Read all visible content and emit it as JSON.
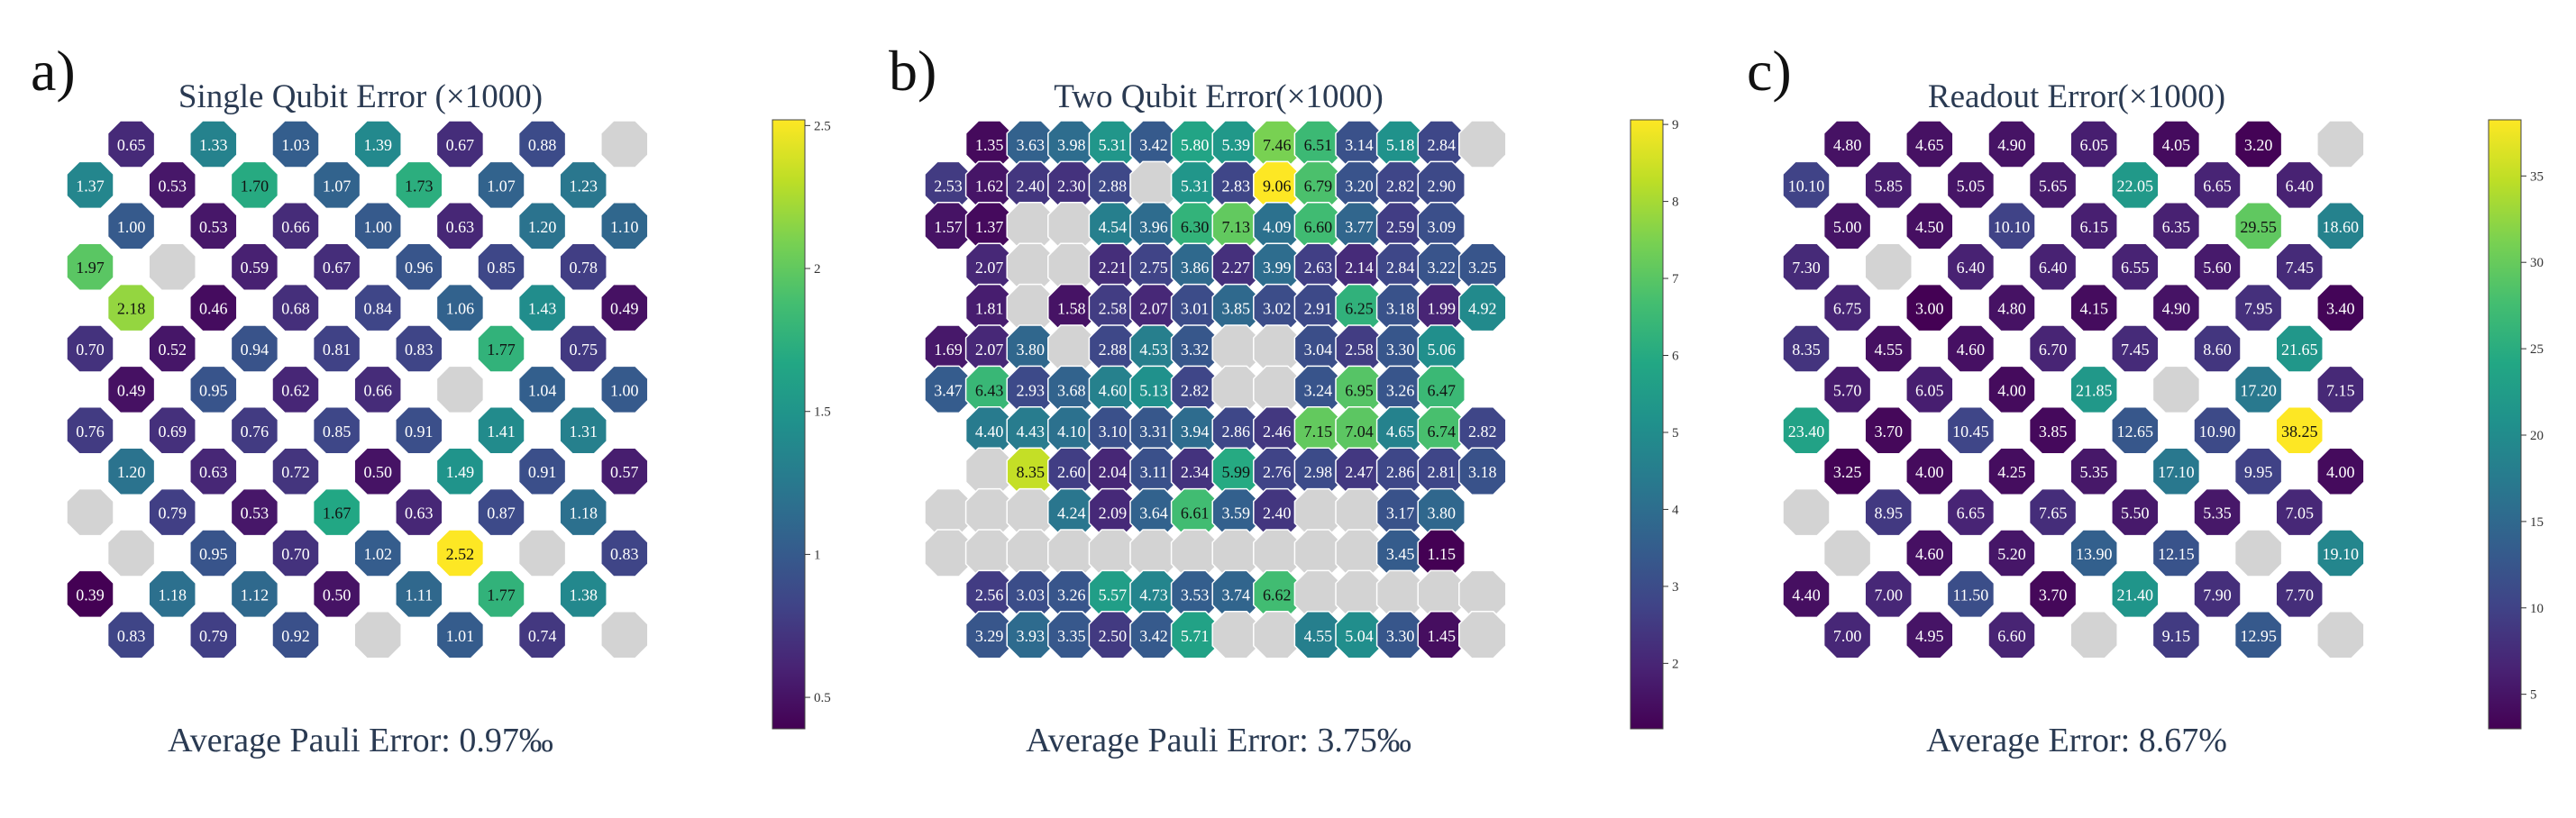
{
  "panels": [
    {
      "letter": "a)",
      "title": "Single Qubit Error (×1000)",
      "footer": "Average Pauli Error: 0.97‰"
    },
    {
      "letter": "b)",
      "title": "Two Qubit Error(×1000)",
      "footer": "Average Pauli Error: 3.75‰"
    },
    {
      "letter": "c)",
      "title": "Readout Error(×1000)",
      "footer": "Average Error: 8.67%"
    }
  ],
  "chart_data": [
    {
      "type": "heatmap",
      "title": "Single Qubit Error (×1000)",
      "colormap": "viridis",
      "vmin": 0.39,
      "vmax": 2.52,
      "colorbar_ticks": [
        "0.5",
        "1",
        "1.5",
        "2",
        "2.5"
      ],
      "colorbar_tick_values": [
        0.5,
        1,
        1.5,
        2,
        2.5
      ],
      "summary": "Average Pauli Error: 0.97‰",
      "rows": [
        [
          null,
          0.65,
          null,
          1.33,
          null,
          1.03,
          null,
          1.39,
          null,
          0.67,
          null,
          0.88,
          null,
          "NA"
        ],
        [
          1.37,
          null,
          0.53,
          null,
          1.7,
          null,
          1.07,
          null,
          1.73,
          null,
          1.07,
          null,
          1.23,
          null
        ],
        [
          null,
          1.0,
          null,
          0.53,
          null,
          0.66,
          null,
          1.0,
          null,
          0.63,
          null,
          1.2,
          null,
          1.1
        ],
        [
          1.97,
          null,
          "NA",
          null,
          0.59,
          null,
          0.67,
          null,
          0.96,
          null,
          0.85,
          null,
          0.78,
          null
        ],
        [
          null,
          2.18,
          null,
          0.46,
          null,
          0.68,
          null,
          0.84,
          null,
          1.06,
          null,
          1.43,
          null,
          0.49
        ],
        [
          0.7,
          null,
          0.52,
          null,
          0.94,
          null,
          0.81,
          null,
          0.83,
          null,
          1.77,
          null,
          0.75,
          null
        ],
        [
          null,
          0.49,
          null,
          0.95,
          null,
          0.62,
          null,
          0.66,
          null,
          "NA",
          null,
          1.04,
          null,
          1.0
        ],
        [
          0.76,
          null,
          0.69,
          null,
          0.76,
          null,
          0.85,
          null,
          0.91,
          null,
          1.41,
          null,
          1.31,
          null
        ],
        [
          null,
          1.2,
          null,
          0.63,
          null,
          0.72,
          null,
          0.5,
          null,
          1.49,
          null,
          0.91,
          null,
          0.57
        ],
        [
          "NA",
          null,
          0.79,
          null,
          0.53,
          null,
          1.67,
          null,
          0.63,
          null,
          0.87,
          null,
          1.18,
          null
        ],
        [
          null,
          "NA",
          null,
          0.95,
          null,
          0.7,
          null,
          1.02,
          null,
          2.52,
          null,
          "NA",
          null,
          0.83
        ],
        [
          0.39,
          null,
          1.18,
          null,
          1.12,
          null,
          0.5,
          null,
          1.11,
          null,
          1.77,
          null,
          1.38,
          null
        ],
        [
          null,
          0.83,
          null,
          0.79,
          null,
          0.92,
          null,
          "NA",
          null,
          1.01,
          null,
          0.74,
          null,
          "NA"
        ]
      ]
    },
    {
      "type": "heatmap",
      "title": "Two Qubit Error(×1000)",
      "colormap": "viridis",
      "vmin": 1.15,
      "vmax": 9.06,
      "colorbar_ticks": [
        "2",
        "3",
        "4",
        "5",
        "6",
        "7",
        "8",
        "9"
      ],
      "colorbar_tick_values": [
        2,
        3,
        4,
        5,
        6,
        7,
        8,
        9
      ],
      "summary": "Average Pauli Error: 3.75‰",
      "rows": [
        [
          null,
          1.35,
          3.63,
          3.98,
          5.31,
          3.42,
          5.8,
          5.39,
          7.46,
          6.51,
          3.14,
          5.18,
          2.84,
          "NA"
        ],
        [
          2.53,
          1.62,
          2.4,
          2.3,
          2.88,
          "NA",
          5.31,
          2.83,
          9.06,
          6.79,
          3.2,
          2.82,
          2.9,
          null
        ],
        [
          1.57,
          1.37,
          "NA",
          "NA",
          4.54,
          3.96,
          6.3,
          7.13,
          4.09,
          6.6,
          3.77,
          2.59,
          3.09,
          null
        ],
        [
          null,
          2.07,
          "NA",
          "NA",
          2.21,
          2.75,
          3.86,
          2.27,
          3.99,
          2.63,
          2.14,
          2.84,
          3.22,
          3.25
        ],
        [
          null,
          1.81,
          "NA",
          1.58,
          2.58,
          2.07,
          3.01,
          3.85,
          3.02,
          2.91,
          6.25,
          3.18,
          1.99,
          4.92
        ],
        [
          1.69,
          2.07,
          3.8,
          "NA",
          2.88,
          4.53,
          3.32,
          "NA",
          "NA",
          3.04,
          2.58,
          3.3,
          5.06,
          null
        ],
        [
          3.47,
          6.43,
          2.93,
          3.68,
          4.6,
          5.13,
          2.82,
          "NA",
          "NA",
          3.24,
          6.95,
          3.26,
          6.47,
          null
        ],
        [
          null,
          4.4,
          4.43,
          4.1,
          3.1,
          3.31,
          3.94,
          2.86,
          2.46,
          7.15,
          7.04,
          4.65,
          6.74,
          2.82
        ],
        [
          null,
          "NA",
          8.35,
          2.6,
          2.04,
          3.11,
          2.34,
          5.99,
          2.76,
          2.98,
          2.47,
          2.86,
          2.81,
          3.18
        ],
        [
          "NA",
          "NA",
          "NA",
          4.24,
          2.09,
          3.64,
          6.61,
          3.59,
          2.4,
          "NA",
          "NA",
          3.17,
          3.8,
          null
        ],
        [
          "NA",
          "NA",
          "NA",
          "NA",
          "NA",
          "NA",
          "NA",
          "NA",
          "NA",
          "NA",
          "NA",
          3.45,
          1.15,
          null
        ],
        [
          null,
          2.56,
          3.03,
          3.26,
          5.57,
          4.73,
          3.53,
          3.74,
          6.62,
          "NA",
          "NA",
          "NA",
          "NA",
          "NA"
        ],
        [
          null,
          3.29,
          3.93,
          3.35,
          2.5,
          3.42,
          5.71,
          "NA",
          "NA",
          4.55,
          5.04,
          3.3,
          1.45,
          "NA"
        ]
      ]
    },
    {
      "type": "heatmap",
      "title": "Readout Error(×1000)",
      "colormap": "viridis",
      "vmin": 3.0,
      "vmax": 38.25,
      "colorbar_ticks": [
        "5",
        "10",
        "15",
        "20",
        "25",
        "30",
        "35"
      ],
      "colorbar_tick_values": [
        5,
        10,
        15,
        20,
        25,
        30,
        35
      ],
      "summary": "Average Error: 8.67%",
      "rows": [
        [
          null,
          4.8,
          null,
          4.65,
          null,
          4.9,
          null,
          6.05,
          null,
          4.05,
          null,
          3.2,
          null,
          "NA"
        ],
        [
          10.1,
          null,
          5.85,
          null,
          5.05,
          null,
          5.65,
          null,
          22.05,
          null,
          6.65,
          null,
          6.4,
          null
        ],
        [
          null,
          5.0,
          null,
          4.5,
          null,
          10.1,
          null,
          6.15,
          null,
          6.35,
          null,
          29.55,
          null,
          18.6
        ],
        [
          7.3,
          null,
          "NA",
          null,
          6.4,
          null,
          6.4,
          null,
          6.55,
          null,
          5.6,
          null,
          7.45,
          null
        ],
        [
          null,
          6.75,
          null,
          3.0,
          null,
          4.8,
          null,
          4.15,
          null,
          4.9,
          null,
          7.95,
          null,
          3.4
        ],
        [
          8.35,
          null,
          4.55,
          null,
          4.6,
          null,
          6.7,
          null,
          7.45,
          null,
          8.6,
          null,
          21.65,
          null
        ],
        [
          null,
          5.7,
          null,
          6.05,
          null,
          4.0,
          null,
          21.85,
          null,
          "NA",
          null,
          17.2,
          null,
          7.15
        ],
        [
          23.4,
          null,
          3.7,
          null,
          10.45,
          null,
          3.85,
          null,
          12.65,
          null,
          10.9,
          null,
          38.25,
          null
        ],
        [
          null,
          3.25,
          null,
          4.0,
          null,
          4.25,
          null,
          5.35,
          null,
          17.1,
          null,
          9.95,
          null,
          4.0
        ],
        [
          "NA",
          null,
          8.95,
          null,
          6.65,
          null,
          7.65,
          null,
          5.5,
          null,
          5.35,
          null,
          7.05,
          null
        ],
        [
          null,
          "NA",
          null,
          4.6,
          null,
          5.2,
          null,
          13.9,
          null,
          12.15,
          null,
          "NA",
          null,
          19.1
        ],
        [
          4.4,
          null,
          7.0,
          null,
          11.5,
          null,
          3.7,
          null,
          21.4,
          null,
          7.9,
          null,
          7.7,
          null
        ],
        [
          null,
          7.0,
          null,
          4.95,
          null,
          6.6,
          null,
          "NA",
          null,
          9.15,
          null,
          12.95,
          null,
          "NA"
        ]
      ]
    }
  ]
}
